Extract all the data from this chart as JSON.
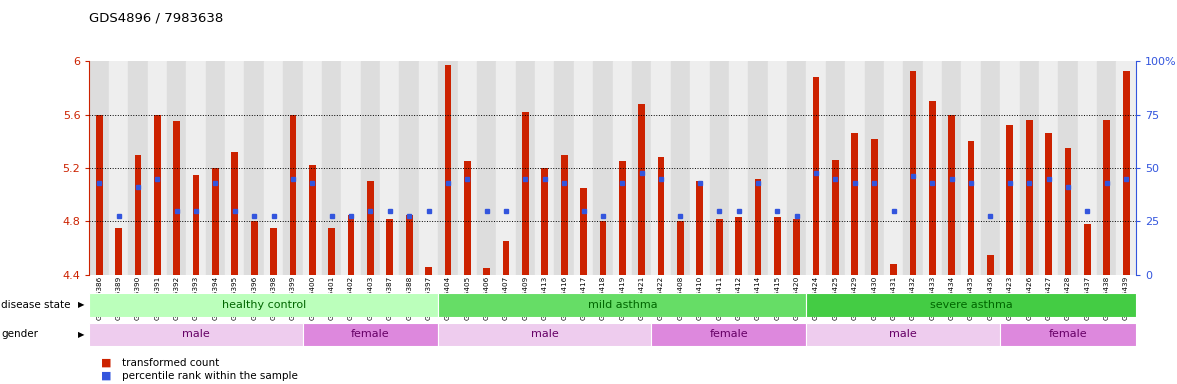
{
  "title": "GDS4896 / 7983638",
  "samples": [
    "GSM665386",
    "GSM665389",
    "GSM665390",
    "GSM665391",
    "GSM665392",
    "GSM665393",
    "GSM665394",
    "GSM665395",
    "GSM665396",
    "GSM665398",
    "GSM665399",
    "GSM665400",
    "GSM665401",
    "GSM665402",
    "GSM665403",
    "GSM665387",
    "GSM665388",
    "GSM665397",
    "GSM665404",
    "GSM665405",
    "GSM665406",
    "GSM665407",
    "GSM665409",
    "GSM665413",
    "GSM665416",
    "GSM665417",
    "GSM665418",
    "GSM665419",
    "GSM665421",
    "GSM665422",
    "GSM665408",
    "GSM665410",
    "GSM665411",
    "GSM665412",
    "GSM665414",
    "GSM665415",
    "GSM665420",
    "GSM665424",
    "GSM665425",
    "GSM665429",
    "GSM665430",
    "GSM665431",
    "GSM665432",
    "GSM665433",
    "GSM665434",
    "GSM665435",
    "GSM665436",
    "GSM665423",
    "GSM665426",
    "GSM665427",
    "GSM665428",
    "GSM665437",
    "GSM665438",
    "GSM665439"
  ],
  "bar_values": [
    5.6,
    4.75,
    5.3,
    5.6,
    5.55,
    5.15,
    5.2,
    5.32,
    4.8,
    4.75,
    5.6,
    5.22,
    4.75,
    4.85,
    5.1,
    4.82,
    4.85,
    4.46,
    5.97,
    5.25,
    4.45,
    4.65,
    5.62,
    5.2,
    5.3,
    5.05,
    4.8,
    5.25,
    5.68,
    5.28,
    4.8,
    5.1,
    4.82,
    4.83,
    5.12,
    4.83,
    4.82,
    5.88,
    5.26,
    5.46,
    5.42,
    4.48,
    5.93,
    5.7,
    5.6,
    5.4,
    4.55,
    5.52,
    5.56,
    5.46,
    5.35,
    4.78,
    5.56,
    5.93
  ],
  "percentile_values": [
    5.09,
    4.84,
    5.06,
    5.12,
    4.88,
    4.88,
    5.09,
    4.88,
    4.84,
    4.84,
    5.12,
    5.09,
    4.84,
    4.84,
    4.88,
    4.88,
    4.84,
    4.88,
    5.09,
    5.12,
    4.88,
    4.88,
    5.12,
    5.12,
    5.09,
    4.88,
    4.84,
    5.09,
    5.16,
    5.12,
    4.84,
    5.09,
    4.88,
    4.88,
    5.09,
    4.88,
    4.84,
    5.16,
    5.12,
    5.09,
    5.09,
    4.88,
    5.14,
    5.09,
    5.12,
    5.09,
    4.84,
    5.09,
    5.09,
    5.12,
    5.06,
    4.88,
    5.09,
    5.12
  ],
  "ylim": [
    4.4,
    6.0
  ],
  "yticks": [
    4.4,
    4.8,
    5.2,
    5.6,
    6.0
  ],
  "ytick_labels": [
    "4.4",
    "4.8",
    "5.2",
    "5.6",
    "6"
  ],
  "right_yticks_pct": [
    0,
    25,
    50,
    75,
    100
  ],
  "right_ytick_labels": [
    "0",
    "25",
    "50",
    "75",
    "100%"
  ],
  "bar_color": "#CC2200",
  "percentile_color": "#3355DD",
  "bar_width": 0.35,
  "tick_color": "#CC2200",
  "right_tick_color": "#3355DD",
  "disease_groups": [
    {
      "label": "healthy control",
      "start": 0,
      "end": 18,
      "color": "#BBFFBB"
    },
    {
      "label": "mild asthma",
      "start": 18,
      "end": 37,
      "color": "#66DD66"
    },
    {
      "label": "severe asthma",
      "start": 37,
      "end": 54,
      "color": "#44CC44"
    }
  ],
  "gender_groups": [
    {
      "label": "male",
      "start": 0,
      "end": 11,
      "color": "#EECCEE"
    },
    {
      "label": "female",
      "start": 11,
      "end": 18,
      "color": "#DD88DD"
    },
    {
      "label": "male",
      "start": 18,
      "end": 29,
      "color": "#EECCEE"
    },
    {
      "label": "female",
      "start": 29,
      "end": 37,
      "color": "#DD88DD"
    },
    {
      "label": "male",
      "start": 37,
      "end": 47,
      "color": "#EECCEE"
    },
    {
      "label": "female",
      "start": 47,
      "end": 54,
      "color": "#DD88DD"
    }
  ]
}
